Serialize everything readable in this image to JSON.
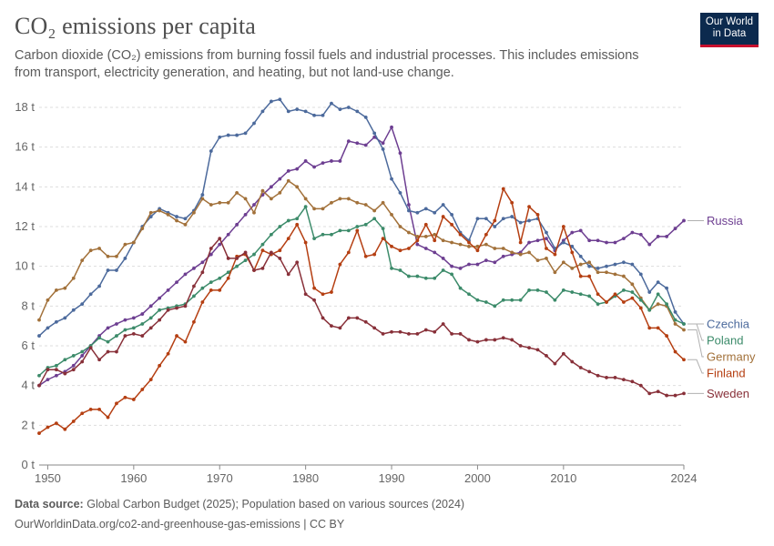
{
  "header": {
    "title": "CO₂ emissions per capita",
    "subtitle": "Carbon dioxide (CO₂) emissions from burning fossil fuels and industrial processes. This includes emissions from transport, electricity generation, and heating, but not land-use change.",
    "logo_line1": "Our World",
    "logo_line2": "in Data"
  },
  "footer": {
    "source_label": "Data source:",
    "source_text": "Global Carbon Budget (2025); Population based on various sources (2024)",
    "url_text": "OurWorldinData.org/co2-and-greenhouse-gas-emissions | CC BY"
  },
  "colors": {
    "brand": "#0c2a4e",
    "brand_accent": "#c8102e",
    "grid": "#dddddd",
    "axis_text": "#666666"
  },
  "chart_data": {
    "type": "line",
    "title": "CO₂ emissions per capita",
    "y_unit_suffix": " t",
    "ylim": [
      0,
      18
    ],
    "y_ticks": [
      0,
      2,
      4,
      6,
      8,
      10,
      12,
      14,
      16,
      18
    ],
    "xlim": [
      1949,
      2024
    ],
    "x_ticks": [
      1950,
      1960,
      1970,
      1980,
      1990,
      2000,
      2010,
      2024
    ],
    "grid": "horizontal dashed",
    "legend": "right, labels at line ends",
    "series": [
      {
        "name": "Russia",
        "color": "#6d3e91",
        "x": [
          1949,
          1950,
          1951,
          1952,
          1953,
          1954,
          1955,
          1956,
          1957,
          1958,
          1959,
          1960,
          1961,
          1962,
          1963,
          1964,
          1965,
          1966,
          1967,
          1968,
          1969,
          1970,
          1971,
          1972,
          1973,
          1974,
          1975,
          1976,
          1977,
          1978,
          1979,
          1980,
          1981,
          1982,
          1983,
          1984,
          1985,
          1986,
          1987,
          1988,
          1989,
          1990,
          1991,
          1992,
          1993,
          1994,
          1995,
          1996,
          1997,
          1998,
          1999,
          2000,
          2001,
          2002,
          2003,
          2004,
          2005,
          2006,
          2007,
          2008,
          2009,
          2010,
          2011,
          2012,
          2013,
          2014,
          2015,
          2016,
          2017,
          2018,
          2019,
          2020,
          2021,
          2022,
          2023,
          2024
        ],
        "y": [
          4.0,
          4.3,
          4.5,
          4.7,
          5.0,
          5.5,
          6.0,
          6.5,
          6.9,
          7.1,
          7.3,
          7.4,
          7.6,
          8.0,
          8.4,
          8.8,
          9.2,
          9.6,
          9.9,
          10.2,
          10.6,
          11.1,
          11.6,
          12.1,
          12.6,
          13.1,
          13.6,
          14.0,
          14.4,
          14.8,
          14.9,
          15.3,
          15.0,
          15.2,
          15.3,
          15.3,
          16.3,
          16.2,
          16.1,
          16.5,
          16.2,
          17.0,
          15.7,
          13.1,
          11.1,
          10.9,
          10.7,
          10.4,
          10.0,
          9.9,
          10.1,
          10.1,
          10.3,
          10.2,
          10.5,
          10.6,
          10.7,
          11.2,
          11.3,
          11.4,
          10.8,
          11.3,
          11.7,
          11.8,
          11.3,
          11.3,
          11.2,
          11.2,
          11.4,
          11.7,
          11.6,
          11.1,
          11.5,
          11.5,
          11.9,
          12.3
        ]
      },
      {
        "name": "Czechia",
        "color": "#4c6a9c",
        "x": [
          1949,
          1950,
          1951,
          1952,
          1953,
          1954,
          1955,
          1956,
          1957,
          1958,
          1959,
          1960,
          1961,
          1962,
          1963,
          1964,
          1965,
          1966,
          1967,
          1968,
          1969,
          1970,
          1971,
          1972,
          1973,
          1974,
          1975,
          1976,
          1977,
          1978,
          1979,
          1980,
          1981,
          1982,
          1983,
          1984,
          1985,
          1986,
          1987,
          1988,
          1989,
          1990,
          1991,
          1992,
          1993,
          1994,
          1995,
          1996,
          1997,
          1998,
          1999,
          2000,
          2001,
          2002,
          2003,
          2004,
          2005,
          2006,
          2007,
          2008,
          2009,
          2010,
          2011,
          2012,
          2013,
          2014,
          2015,
          2016,
          2017,
          2018,
          2019,
          2020,
          2021,
          2022,
          2023,
          2024
        ],
        "y": [
          6.5,
          6.9,
          7.2,
          7.4,
          7.8,
          8.1,
          8.6,
          9.0,
          9.8,
          9.8,
          10.4,
          11.2,
          12.0,
          12.5,
          12.9,
          12.7,
          12.5,
          12.4,
          12.8,
          13.6,
          15.8,
          16.5,
          16.6,
          16.6,
          16.7,
          17.2,
          17.8,
          18.3,
          18.4,
          17.8,
          17.9,
          17.8,
          17.6,
          17.6,
          18.2,
          17.9,
          18.0,
          17.8,
          17.5,
          16.7,
          15.9,
          14.4,
          13.7,
          12.8,
          12.7,
          12.9,
          12.7,
          13.1,
          12.6,
          11.7,
          11.3,
          12.4,
          12.4,
          12.0,
          12.4,
          12.5,
          12.2,
          12.3,
          12.4,
          11.7,
          10.9,
          11.2,
          11.0,
          10.5,
          10.0,
          9.9,
          10.0,
          10.1,
          10.2,
          10.1,
          9.6,
          8.7,
          9.2,
          8.9,
          7.7,
          7.1
        ]
      },
      {
        "name": "Germany",
        "color": "#a2713a",
        "x": [
          1949,
          1950,
          1951,
          1952,
          1953,
          1954,
          1955,
          1956,
          1957,
          1958,
          1959,
          1960,
          1961,
          1962,
          1963,
          1964,
          1965,
          1966,
          1967,
          1968,
          1969,
          1970,
          1971,
          1972,
          1973,
          1974,
          1975,
          1976,
          1977,
          1978,
          1979,
          1980,
          1981,
          1982,
          1983,
          1984,
          1985,
          1986,
          1987,
          1988,
          1989,
          1990,
          1991,
          1992,
          1993,
          1994,
          1995,
          1996,
          1997,
          1998,
          1999,
          2000,
          2001,
          2002,
          2003,
          2004,
          2005,
          2006,
          2007,
          2008,
          2009,
          2010,
          2011,
          2012,
          2013,
          2014,
          2015,
          2016,
          2017,
          2018,
          2019,
          2020,
          2021,
          2022,
          2023,
          2024
        ],
        "y": [
          7.3,
          8.3,
          8.8,
          8.9,
          9.4,
          10.3,
          10.8,
          10.9,
          10.5,
          10.5,
          11.1,
          11.2,
          11.9,
          12.7,
          12.8,
          12.6,
          12.3,
          12.1,
          12.7,
          13.4,
          13.1,
          13.2,
          13.2,
          13.7,
          13.4,
          12.7,
          13.8,
          13.4,
          13.7,
          14.3,
          14.0,
          13.4,
          12.9,
          12.9,
          13.2,
          13.4,
          13.4,
          13.2,
          13.1,
          12.8,
          13.2,
          12.6,
          12.0,
          11.7,
          11.5,
          11.5,
          11.6,
          11.3,
          11.2,
          11.1,
          11.0,
          11.0,
          11.1,
          10.9,
          10.9,
          10.7,
          10.6,
          10.7,
          10.3,
          10.4,
          9.7,
          10.2,
          9.9,
          10.1,
          10.2,
          9.7,
          9.7,
          9.6,
          9.5,
          9.1,
          8.4,
          7.8,
          8.1,
          8.0,
          7.1,
          6.8
        ]
      },
      {
        "name": "Poland",
        "color": "#3c8b6a",
        "x": [
          1949,
          1950,
          1951,
          1952,
          1953,
          1954,
          1955,
          1956,
          1957,
          1958,
          1959,
          1960,
          1961,
          1962,
          1963,
          1964,
          1965,
          1966,
          1967,
          1968,
          1969,
          1970,
          1971,
          1972,
          1973,
          1974,
          1975,
          1976,
          1977,
          1978,
          1979,
          1980,
          1981,
          1982,
          1983,
          1984,
          1985,
          1986,
          1987,
          1988,
          1989,
          1990,
          1991,
          1992,
          1993,
          1994,
          1995,
          1996,
          1997,
          1998,
          1999,
          2000,
          2001,
          2002,
          2003,
          2004,
          2005,
          2006,
          2007,
          2008,
          2009,
          2010,
          2011,
          2012,
          2013,
          2014,
          2015,
          2016,
          2017,
          2018,
          2019,
          2020,
          2021,
          2022,
          2023,
          2024
        ],
        "y": [
          4.5,
          4.9,
          5.0,
          5.3,
          5.5,
          5.7,
          6.0,
          6.4,
          6.2,
          6.5,
          6.8,
          6.9,
          7.1,
          7.4,
          7.8,
          7.9,
          8.0,
          8.1,
          8.5,
          8.9,
          9.2,
          9.4,
          9.7,
          10.0,
          10.3,
          10.6,
          11.1,
          11.6,
          12.0,
          12.3,
          12.4,
          13.0,
          11.4,
          11.6,
          11.6,
          11.8,
          11.8,
          12.0,
          12.1,
          12.4,
          11.9,
          9.9,
          9.8,
          9.5,
          9.5,
          9.4,
          9.4,
          9.8,
          9.6,
          8.9,
          8.6,
          8.3,
          8.2,
          8.0,
          8.3,
          8.3,
          8.3,
          8.8,
          8.8,
          8.7,
          8.3,
          8.8,
          8.7,
          8.6,
          8.5,
          8.1,
          8.2,
          8.5,
          8.8,
          8.7,
          8.3,
          7.8,
          8.6,
          8.1,
          7.3,
          7.1
        ]
      },
      {
        "name": "Finland",
        "color": "#b53f12",
        "x": [
          1949,
          1950,
          1951,
          1952,
          1953,
          1954,
          1955,
          1956,
          1957,
          1958,
          1959,
          1960,
          1961,
          1962,
          1963,
          1964,
          1965,
          1966,
          1967,
          1968,
          1969,
          1970,
          1971,
          1972,
          1973,
          1974,
          1975,
          1976,
          1977,
          1978,
          1979,
          1980,
          1981,
          1982,
          1983,
          1984,
          1985,
          1986,
          1987,
          1988,
          1989,
          1990,
          1991,
          1992,
          1993,
          1994,
          1995,
          1996,
          1997,
          1998,
          1999,
          2000,
          2001,
          2002,
          2003,
          2004,
          2005,
          2006,
          2007,
          2008,
          2009,
          2010,
          2011,
          2012,
          2013,
          2014,
          2015,
          2016,
          2017,
          2018,
          2019,
          2020,
          2021,
          2022,
          2023,
          2024
        ],
        "y": [
          1.6,
          1.9,
          2.1,
          1.8,
          2.2,
          2.6,
          2.8,
          2.8,
          2.4,
          3.1,
          3.4,
          3.3,
          3.8,
          4.3,
          5.0,
          5.6,
          6.5,
          6.2,
          7.2,
          8.2,
          8.8,
          8.8,
          9.4,
          10.5,
          10.6,
          9.8,
          10.8,
          10.6,
          10.8,
          11.4,
          12.1,
          11.2,
          8.9,
          8.6,
          8.7,
          10.1,
          10.7,
          11.8,
          10.5,
          10.6,
          11.4,
          11.0,
          10.8,
          10.9,
          11.3,
          12.1,
          11.3,
          12.5,
          12.1,
          11.6,
          11.2,
          10.8,
          11.6,
          12.3,
          13.9,
          13.2,
          11.2,
          13.0,
          12.6,
          10.9,
          10.6,
          12.0,
          10.7,
          9.5,
          9.5,
          8.6,
          8.2,
          8.6,
          8.2,
          8.4,
          7.9,
          6.9,
          6.9,
          6.5,
          5.7,
          5.3
        ]
      },
      {
        "name": "Sweden",
        "color": "#883039",
        "x": [
          1949,
          1950,
          1951,
          1952,
          1953,
          1954,
          1955,
          1956,
          1957,
          1958,
          1959,
          1960,
          1961,
          1962,
          1963,
          1964,
          1965,
          1966,
          1967,
          1968,
          1969,
          1970,
          1971,
          1972,
          1973,
          1974,
          1975,
          1976,
          1977,
          1978,
          1979,
          1980,
          1981,
          1982,
          1983,
          1984,
          1985,
          1986,
          1987,
          1988,
          1989,
          1990,
          1991,
          1992,
          1993,
          1994,
          1995,
          1996,
          1997,
          1998,
          1999,
          2000,
          2001,
          2002,
          2003,
          2004,
          2005,
          2006,
          2007,
          2008,
          2009,
          2010,
          2011,
          2012,
          2013,
          2014,
          2015,
          2016,
          2017,
          2018,
          2019,
          2020,
          2021,
          2022,
          2023,
          2024
        ],
        "y": [
          4.0,
          4.8,
          4.8,
          4.6,
          4.8,
          5.2,
          5.9,
          5.3,
          5.7,
          5.7,
          6.5,
          6.6,
          6.5,
          6.9,
          7.3,
          7.8,
          7.9,
          8.0,
          9.0,
          9.7,
          10.9,
          11.4,
          10.4,
          10.4,
          10.7,
          9.8,
          9.9,
          10.7,
          10.4,
          9.6,
          10.2,
          8.6,
          8.3,
          7.4,
          7.0,
          6.9,
          7.4,
          7.4,
          7.2,
          6.9,
          6.6,
          6.7,
          6.7,
          6.6,
          6.6,
          6.8,
          6.7,
          7.1,
          6.6,
          6.6,
          6.3,
          6.2,
          6.3,
          6.3,
          6.4,
          6.3,
          6.0,
          5.9,
          5.8,
          5.5,
          5.1,
          5.6,
          5.2,
          4.9,
          4.7,
          4.5,
          4.4,
          4.4,
          4.3,
          4.2,
          4.0,
          3.6,
          3.7,
          3.5,
          3.5,
          3.6
        ]
      }
    ]
  }
}
